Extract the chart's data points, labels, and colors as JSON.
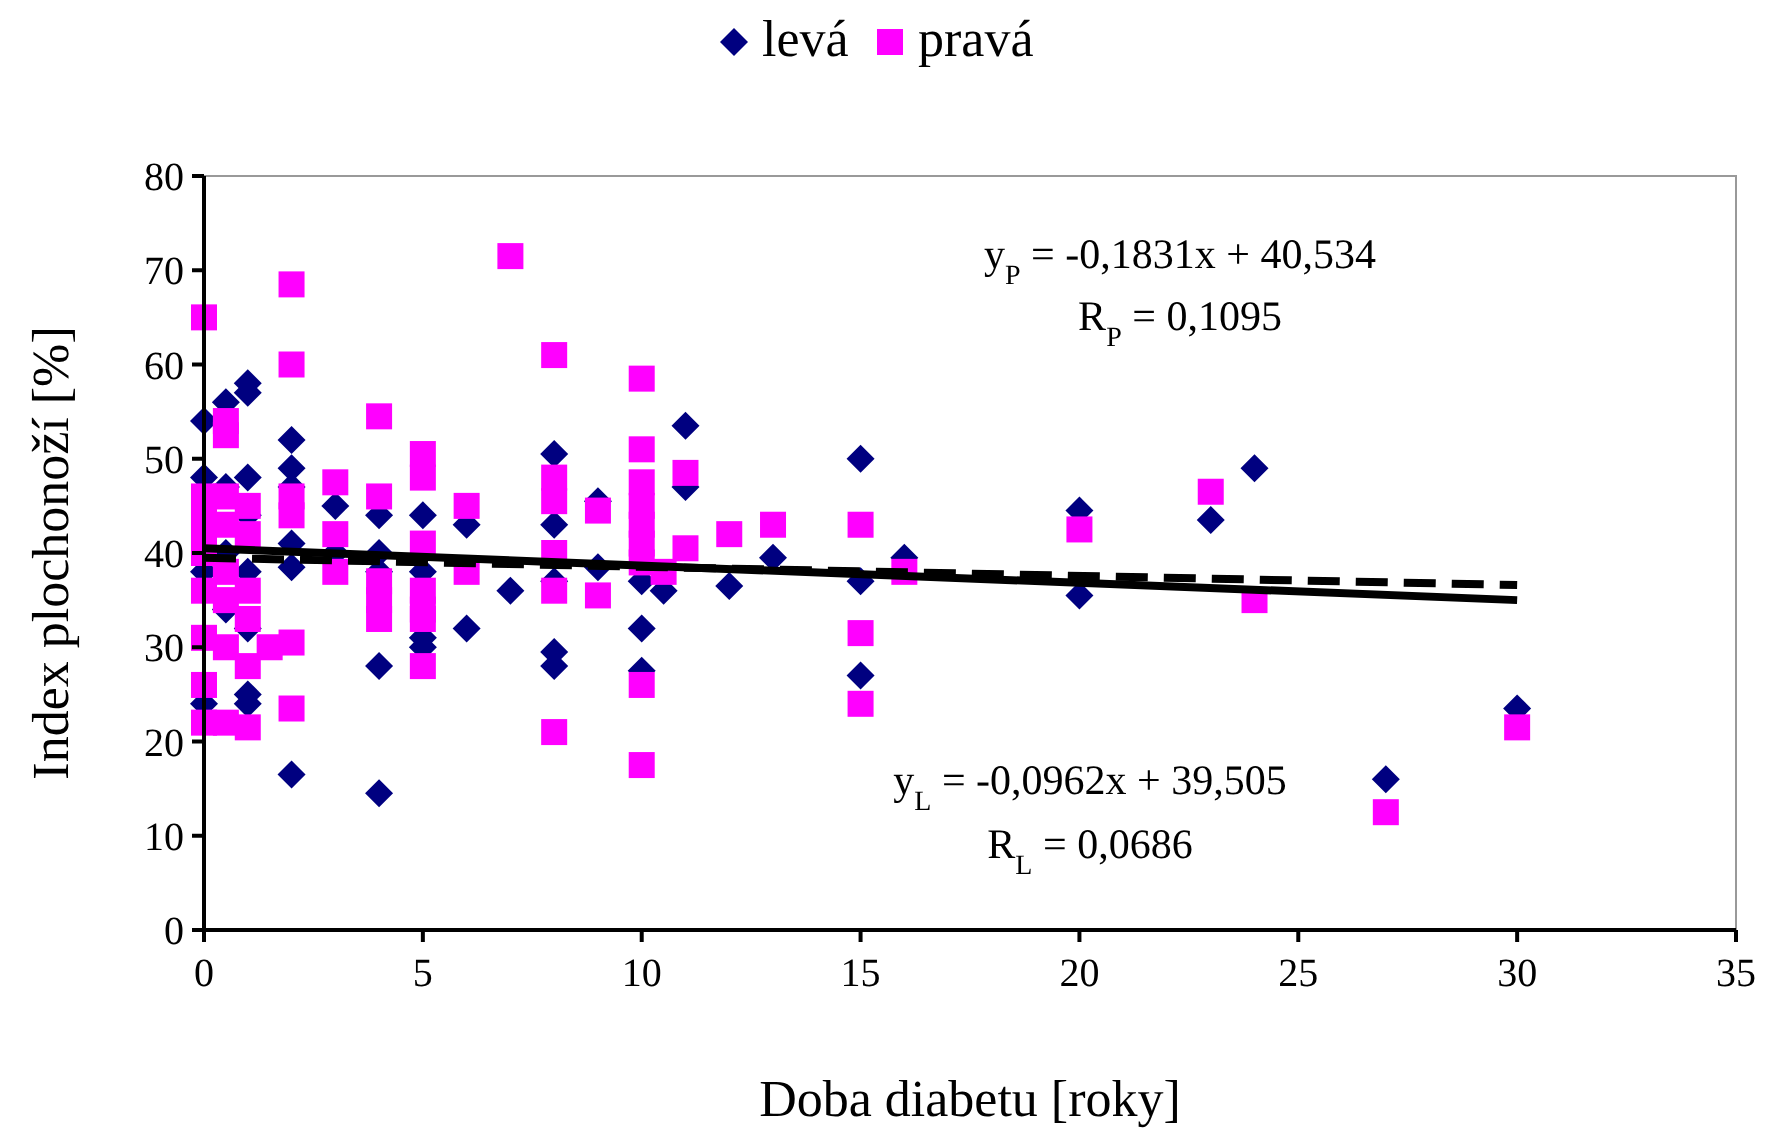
{
  "chart_data": {
    "type": "scatter",
    "xlabel": "Doba diabetu [roky]",
    "ylabel": "Index plochonoží [%]",
    "xlim": [
      0,
      35
    ],
    "ylim": [
      0,
      80
    ],
    "xticks": [
      0,
      5,
      10,
      15,
      20,
      25,
      30,
      35
    ],
    "yticks": [
      0,
      10,
      20,
      30,
      40,
      50,
      60,
      70,
      80
    ],
    "grid": false,
    "legend": "top",
    "annotations": [
      "y$_{P}$ = -0,1831x + 40,534",
      "R$_{P}$ = 0,1095",
      "y$_{L}$ = -0,0962x + 39,505",
      "R$_{L}$ = 0,0686"
    ],
    "series": [
      {
        "name": "levá",
        "color": "#000080",
        "marker": "diamond",
        "x": [
          0,
          0,
          0,
          0,
          0.5,
          0.5,
          0.5,
          0.5,
          1,
          1,
          1,
          1,
          1,
          1,
          1,
          1,
          2,
          2,
          2,
          2,
          2,
          2,
          3,
          3,
          4,
          4,
          4,
          4,
          4,
          5,
          5,
          5,
          5,
          6,
          6,
          7,
          8,
          8,
          8,
          8,
          8,
          9,
          9,
          10,
          10,
          10,
          10.5,
          11,
          11,
          12,
          13,
          15,
          15,
          15,
          16,
          20,
          20,
          23,
          24,
          27,
          30
        ],
        "values": [
          54,
          48,
          38,
          24,
          56,
          47,
          40,
          34,
          58,
          57,
          48,
          44,
          38,
          32,
          25,
          24,
          52,
          49,
          47,
          41,
          38.5,
          16.5,
          45,
          40,
          44,
          40,
          38,
          28,
          14.5,
          44,
          38,
          31,
          30,
          43,
          32,
          36,
          50.5,
          43,
          37,
          29.5,
          28,
          45.5,
          38.5,
          37,
          32,
          27.5,
          36,
          53.5,
          47,
          36.5,
          39.5,
          50,
          37,
          27,
          39.5,
          44.5,
          35.5,
          43.5,
          49,
          16,
          23.5
        ]
      },
      {
        "name": "pravá",
        "color": "#ff00ff",
        "marker": "square",
        "x": [
          0,
          0,
          0,
          0,
          0,
          0,
          0,
          0,
          0,
          0.5,
          0.5,
          0.5,
          0.5,
          0.5,
          0.5,
          0.5,
          0.5,
          1,
          1,
          1,
          1,
          1,
          1,
          1.5,
          2,
          2,
          2,
          2,
          2,
          2,
          3,
          3,
          3,
          4,
          4,
          4,
          4,
          4,
          5,
          5,
          5,
          5,
          5,
          5,
          5,
          6,
          6,
          7,
          8,
          8,
          8,
          8,
          8,
          8,
          9,
          9,
          10,
          10,
          10,
          10,
          10,
          10,
          10,
          10,
          10,
          10.5,
          11,
          11,
          12,
          13,
          15,
          15,
          15,
          16,
          20,
          23,
          24,
          27,
          30
        ],
        "values": [
          65,
          46,
          44,
          42,
          40,
          36,
          31,
          26,
          22,
          54,
          52.5,
          46,
          43,
          38,
          35,
          30,
          22,
          45,
          42,
          36,
          33,
          28,
          21.5,
          30,
          68.5,
          60,
          46,
          44,
          30.5,
          23.5,
          47.5,
          42,
          38,
          54.5,
          46,
          37,
          35,
          33,
          50.5,
          48,
          41,
          36,
          34,
          33,
          28,
          45,
          38,
          71.5,
          61,
          48,
          45.5,
          40,
          36,
          21,
          44.5,
          35.5,
          58.5,
          51,
          47.5,
          45,
          43,
          41,
          39,
          26,
          17.5,
          38,
          48.5,
          40.5,
          42,
          43,
          43,
          31.5,
          24,
          38,
          42.5,
          46.5,
          35,
          12.5,
          21.5
        ]
      },
      {
        "type": "line",
        "color": "#000000",
        "line_style": "dashed",
        "marker": "none",
        "x": [
          0,
          30
        ],
        "values": [
          39.5,
          36.6
        ]
      },
      {
        "type": "line",
        "color": "#000000",
        "line_style": "solid",
        "marker": "none",
        "x": [
          0,
          30
        ],
        "values": [
          40.5,
          35.0
        ]
      }
    ]
  }
}
